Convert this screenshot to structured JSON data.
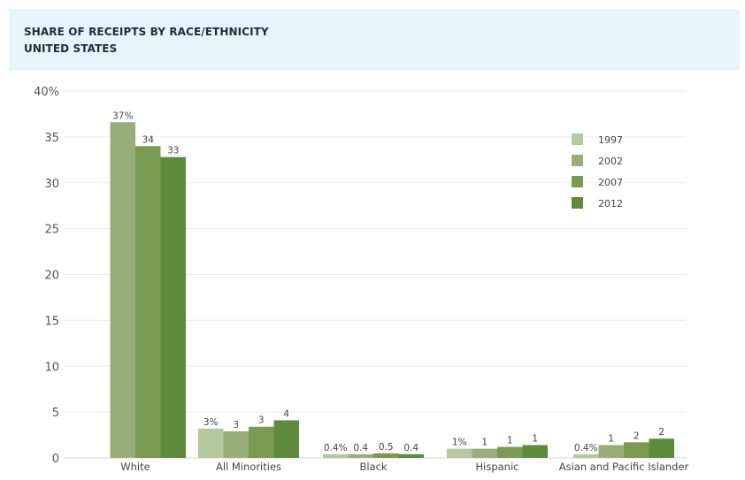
{
  "header": {
    "title": "SHARE OF RECEIPTS BY RACE/ETHNICITY",
    "subtitle": "UNITED STATES"
  },
  "chart_data": {
    "type": "bar",
    "title": "SHARE OF RECEIPTS BY RACE/ETHNICITY",
    "subtitle": "UNITED STATES",
    "categories": [
      "White",
      "All Minorities",
      "Black",
      "Hispanic",
      "Asian and Pacific Islander"
    ],
    "yticks": [
      "0",
      "5",
      "10",
      "15",
      "20",
      "25",
      "30",
      "35",
      "40%"
    ],
    "ylim": [
      0,
      40
    ],
    "grid": true,
    "legend_position": "top-right",
    "series": [
      {
        "name": "1997",
        "color": "#b5c9a0",
        "values": [
          null,
          3.2,
          0.4,
          1.0,
          0.4
        ],
        "labels": [
          "",
          "3%",
          "0.4%",
          "1%",
          "0.4%"
        ]
      },
      {
        "name": "2002",
        "color": "#98ae79",
        "values": [
          36.6,
          2.9,
          0.4,
          1.0,
          1.4
        ],
        "labels": [
          "37%",
          "3",
          "0.4",
          "1",
          "1"
        ]
      },
      {
        "name": "2007",
        "color": "#7a9a52",
        "values": [
          34.0,
          3.4,
          0.5,
          1.2,
          1.7
        ],
        "labels": [
          "34",
          "3",
          "0.5",
          "1",
          "2"
        ]
      },
      {
        "name": "2012",
        "color": "#5e8a3c",
        "values": [
          32.8,
          4.1,
          0.4,
          1.4,
          2.1
        ],
        "labels": [
          "33",
          "4",
          "0.4",
          "1",
          "2"
        ]
      }
    ]
  }
}
